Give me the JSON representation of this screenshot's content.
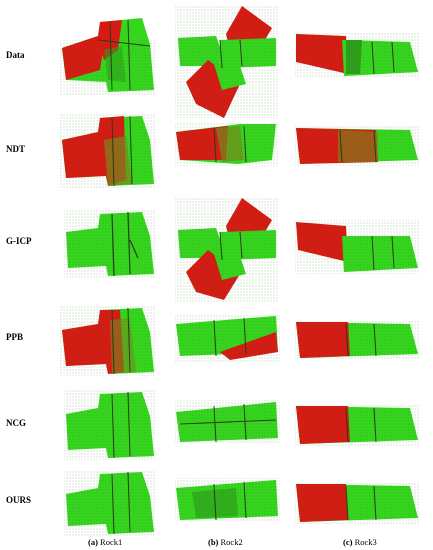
{
  "figure": {
    "rows": [
      {
        "key": "data",
        "label": "Data"
      },
      {
        "key": "ndt",
        "label": "NDT"
      },
      {
        "key": "gicp",
        "label": "G-ICP"
      },
      {
        "key": "ppb",
        "label": "PPB"
      },
      {
        "key": "ncg",
        "label": "NCG"
      },
      {
        "key": "ours",
        "label": "OURS"
      }
    ],
    "columns": [
      {
        "key": "rock1",
        "tag": "(a)",
        "name": "Rock1"
      },
      {
        "key": "rock2",
        "tag": "(b)",
        "name": "Rock2"
      },
      {
        "key": "rock3",
        "tag": "(c)",
        "name": "Rock3"
      }
    ],
    "colors": {
      "green": "#36d61f",
      "red": "#d81a14",
      "dark": "#2a3a1a"
    }
  }
}
